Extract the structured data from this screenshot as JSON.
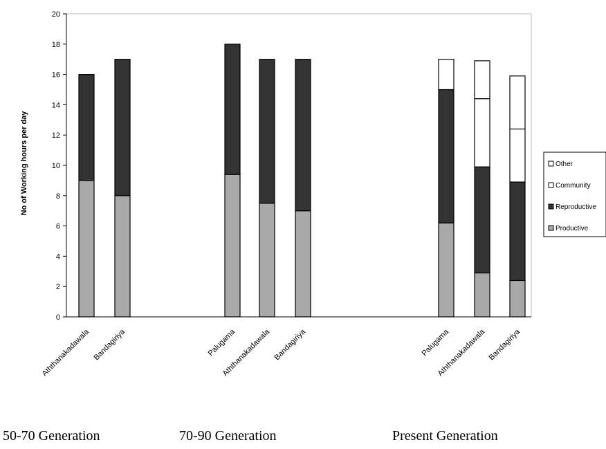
{
  "chart_data": {
    "type": "bar",
    "stacked": true,
    "ylabel": "No of Working hours per day",
    "xlabel": "",
    "ylim": [
      0,
      20
    ],
    "yticks": [
      0,
      2,
      4,
      6,
      8,
      10,
      12,
      14,
      16,
      18,
      20
    ],
    "grid": false,
    "legend_position": "right",
    "groups": [
      {
        "label": "50-70 Generation",
        "categories": [
          "Aththanakadawala",
          "Bandagiriya"
        ]
      },
      {
        "label": "70-90 Generation",
        "categories": [
          "Palugama",
          "Aththanakadawala",
          "Bandagiriya"
        ]
      },
      {
        "label": "Present Generation",
        "categories": [
          "Palugama",
          "Aththanakadawala",
          "Bandagiriya"
        ]
      }
    ],
    "categories": [
      "Aththanakadawala",
      "Bandagiriya",
      "Palugama",
      "Aththanakadawala",
      "Bandagiriya",
      "Palugama",
      "Aththanakadawala",
      "Bandagiriya"
    ],
    "series": [
      {
        "name": "Productive",
        "color": "#a9a9a9",
        "values": [
          9,
          8,
          9.4,
          7.5,
          7,
          6.2,
          2.9,
          2.4
        ]
      },
      {
        "name": "Reproductive",
        "color": "#333333",
        "values": [
          7,
          9,
          8.6,
          9.5,
          10,
          8.8,
          7,
          6.5
        ]
      },
      {
        "name": "Community",
        "color": "#ffffff",
        "values": [
          0,
          0,
          0,
          0,
          0,
          0,
          4.5,
          3.5
        ]
      },
      {
        "name": "Other",
        "color": "#ffffff",
        "values": [
          0,
          0,
          0,
          0,
          0,
          2,
          2.5,
          3.5
        ]
      }
    ],
    "legend_order": [
      "Other",
      "Community",
      "Reproductive",
      "Productive"
    ]
  }
}
